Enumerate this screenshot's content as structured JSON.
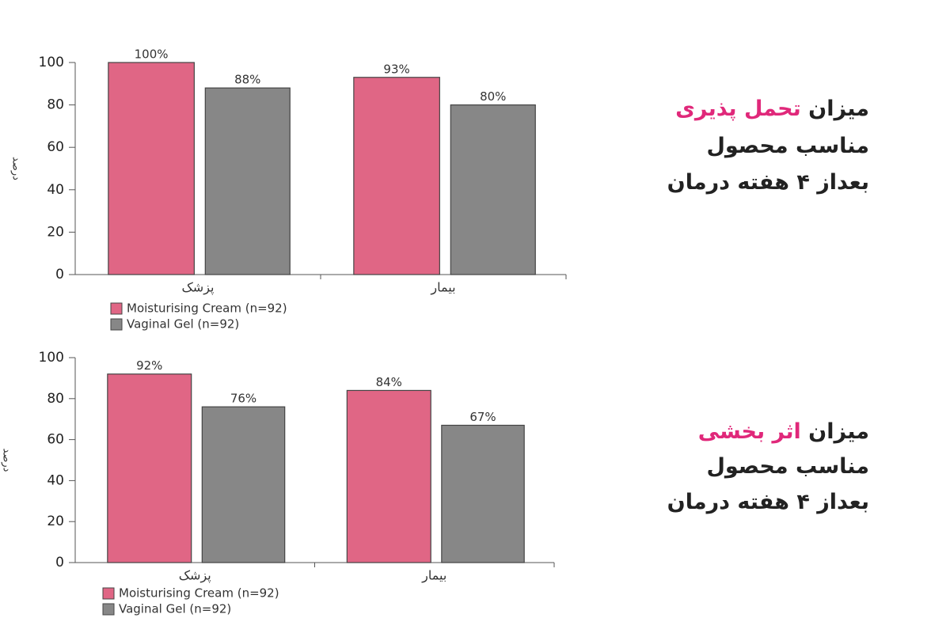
{
  "chart_data": [
    {
      "type": "bar",
      "y_label": "درصد",
      "categories": [
        "پزشک",
        "بیمار"
      ],
      "series": [
        {
          "name": "Moisturising Cream (n=92)",
          "color": "#e06685",
          "values": [
            100,
            93
          ],
          "value_labels": [
            "100%",
            "93%"
          ]
        },
        {
          "name": "Vaginal Gel (n=92)",
          "color": "#878787",
          "values": [
            88,
            80
          ],
          "value_labels": [
            "88%",
            "80%"
          ]
        }
      ],
      "ylim": [
        0,
        100
      ],
      "yticks": [
        0,
        20,
        40,
        60,
        80,
        100
      ],
      "caption": {
        "plain": "میزان",
        "highlight": "تحمل پذیری",
        "highlight_color": "#e0287a",
        "lines": [
          "مناسب محصول",
          "بعداز ۴ هفته درمان"
        ]
      }
    },
    {
      "type": "bar",
      "y_label": "درصد",
      "categories": [
        "پزشک",
        "بیمار"
      ],
      "series": [
        {
          "name": "Moisturising Cream (n=92)",
          "color": "#e06685",
          "values": [
            92,
            84
          ],
          "value_labels": [
            "92%",
            "84%"
          ]
        },
        {
          "name": "Vaginal Gel (n=92)",
          "color": "#878787",
          "values": [
            76,
            67
          ],
          "value_labels": [
            "76%",
            "67%"
          ]
        }
      ],
      "ylim": [
        0,
        100
      ],
      "yticks": [
        0,
        20,
        40,
        60,
        80,
        100
      ],
      "caption": {
        "plain": "میزان",
        "highlight": "اثر بخشی",
        "highlight_color": "#e0287a",
        "lines": [
          "مناسب محصول",
          "بعداز ۴ هفته درمان"
        ]
      }
    }
  ]
}
